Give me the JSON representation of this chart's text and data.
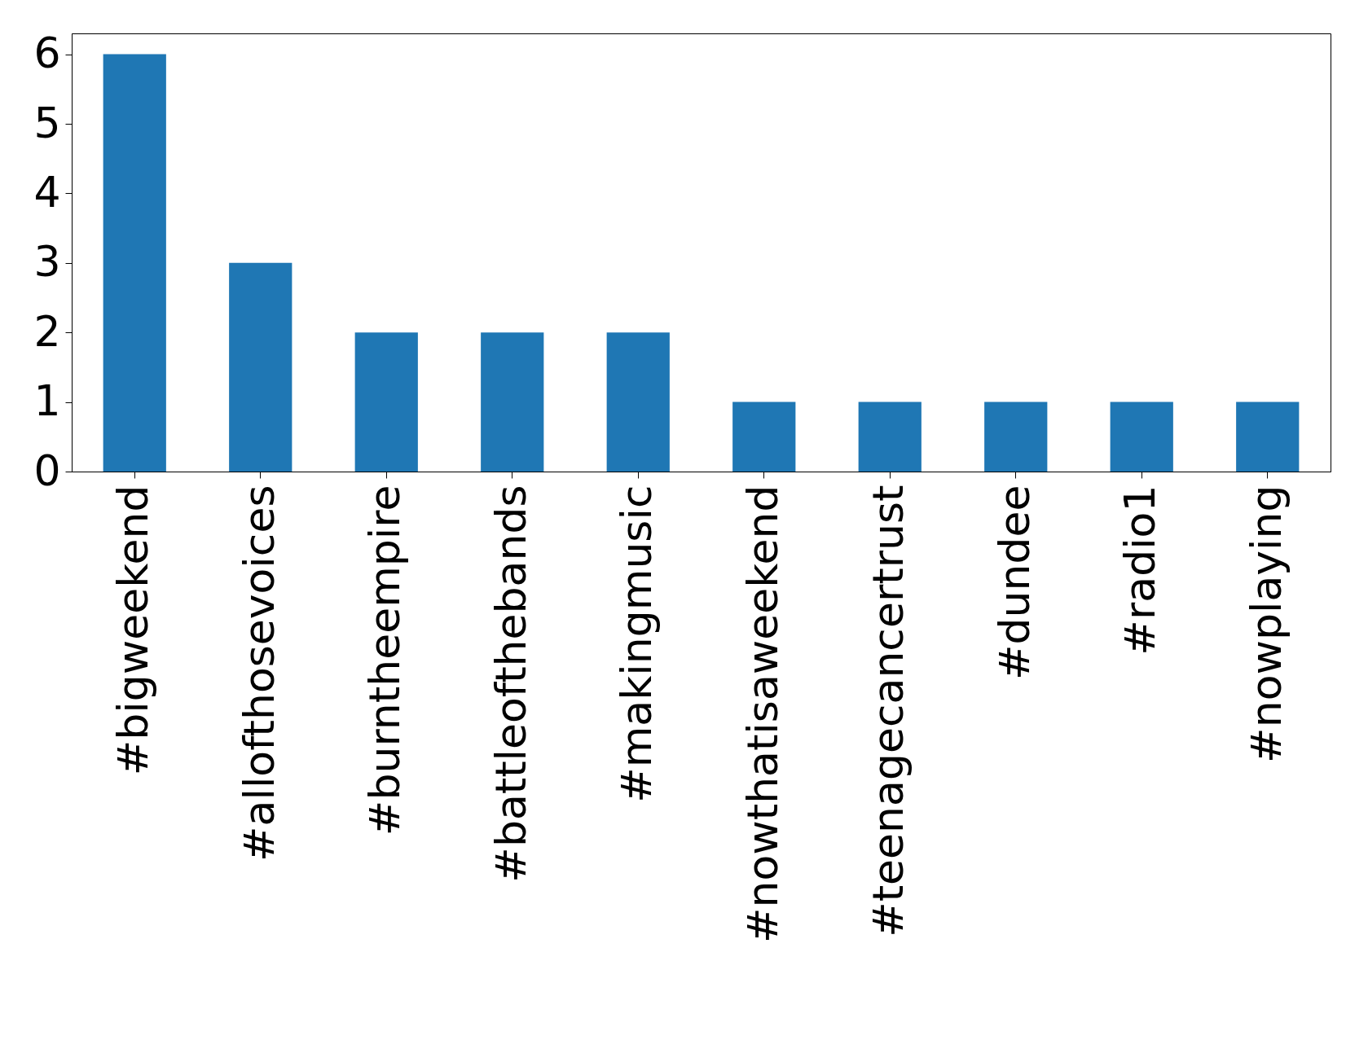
{
  "chart_data": {
    "type": "bar",
    "categories": [
      "#bigweekend",
      "#allofthosevoices",
      "#burntheempire",
      "#battleofthebands",
      "#makingmusic",
      "#nowthatisaweekend",
      "#teenagecancertrust",
      "#dundee",
      "#radio1",
      "#nowplaying"
    ],
    "values": [
      6,
      3,
      2,
      2,
      2,
      1,
      1,
      1,
      1,
      1
    ],
    "color": "#1f77b4",
    "ylim": [
      0,
      6.3
    ],
    "yticks": [
      0,
      1,
      2,
      3,
      4,
      5,
      6
    ],
    "grid": false
  }
}
